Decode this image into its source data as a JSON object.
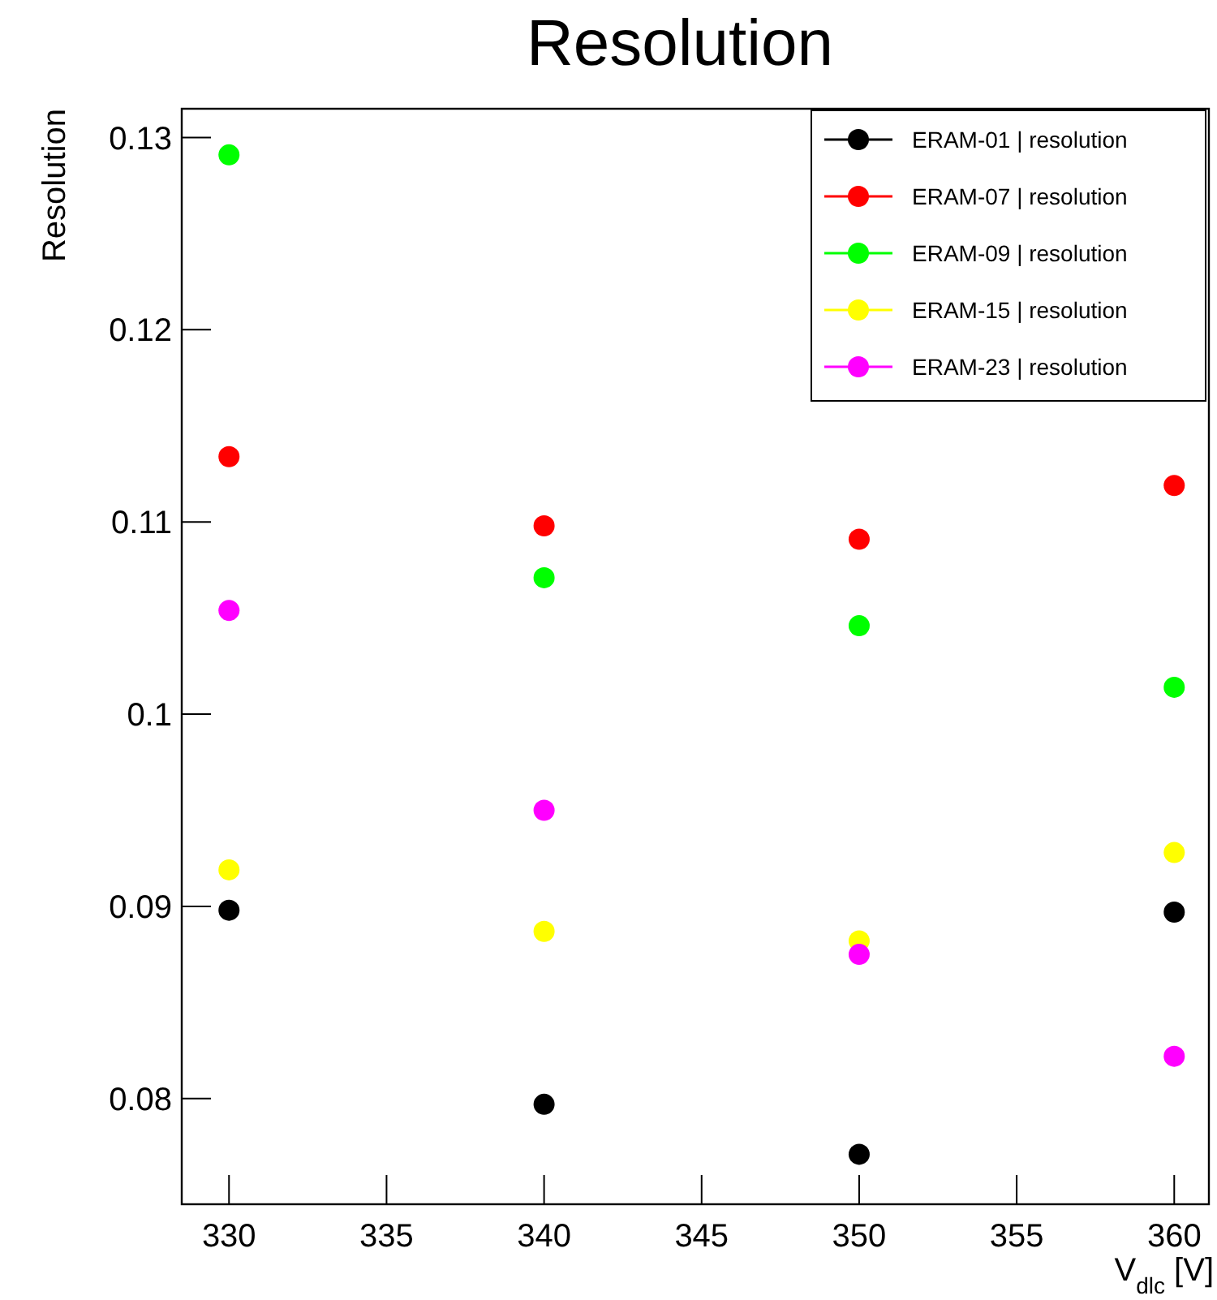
{
  "chart_data": {
    "type": "scatter",
    "title": "Resolution",
    "xlabel": "V$_{dlc}$ [V]",
    "ylabel": "Resolution",
    "x": [
      330,
      340,
      350,
      360
    ],
    "series": [
      {
        "name": "ERAM-01 | resolution",
        "color": "#000000",
        "values": [
          0.0898,
          0.0797,
          0.0771,
          0.0897
        ]
      },
      {
        "name": "ERAM-07 | resolution",
        "color": "#ff0000",
        "values": [
          0.1134,
          0.1098,
          0.1091,
          0.1119
        ]
      },
      {
        "name": "ERAM-09 | resolution",
        "color": "#00ff00",
        "values": [
          0.1291,
          0.1071,
          0.1046,
          0.1014
        ]
      },
      {
        "name": "ERAM-15 | resolution",
        "color": "#ffff00",
        "values": [
          0.0919,
          0.0887,
          0.0882,
          0.0928
        ]
      },
      {
        "name": "ERAM-23 | resolution",
        "color": "#ff00ff",
        "values": [
          0.1054,
          0.095,
          0.0875,
          0.0822
        ]
      }
    ],
    "xlim": [
      328.5,
      361.1
    ],
    "xticks": [
      330,
      335,
      340,
      345,
      350,
      355,
      360
    ],
    "ylim": [
      0.0745,
      0.1315
    ],
    "yticks": [
      {
        "value": 0.08,
        "label": "0.08"
      },
      {
        "value": 0.09,
        "label": "0.09"
      },
      {
        "value": 0.1,
        "label": "0.1"
      },
      {
        "value": 0.11,
        "label": "0.11"
      },
      {
        "value": 0.12,
        "label": "0.12"
      },
      {
        "value": 0.13,
        "label": "0.13"
      }
    ],
    "marker": "circle",
    "legend": "top right",
    "grid": false
  }
}
